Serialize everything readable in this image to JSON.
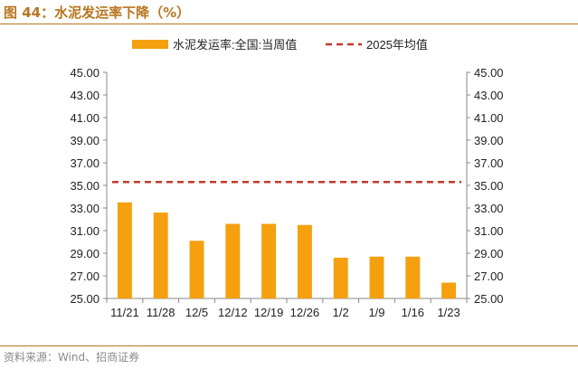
{
  "header": {
    "title": "图 44：水泥发运率下降（%）"
  },
  "footer": {
    "source": "资料来源：Wind、招商证券"
  },
  "colors": {
    "bar": "#F5A00F",
    "line": "#C0392B",
    "accent": "#B8761E",
    "axis": "#888888"
  },
  "chart_data": {
    "type": "bar",
    "categories": [
      "11/21",
      "11/28",
      "12/5",
      "12/12",
      "12/19",
      "12/26",
      "1/2",
      "1/9",
      "1/16",
      "1/23"
    ],
    "series": [
      {
        "name": "水泥发运率:全国:当周值",
        "type": "bar",
        "values": [
          33.5,
          32.6,
          30.1,
          31.6,
          31.6,
          31.5,
          28.6,
          28.7,
          28.7,
          26.4
        ]
      },
      {
        "name": "2025年均值",
        "type": "line",
        "style": "dashed",
        "values": [
          35.3,
          35.3,
          35.3,
          35.3,
          35.3,
          35.3,
          35.3,
          35.3,
          35.3,
          35.3
        ]
      }
    ],
    "ylim": [
      25,
      45
    ],
    "yticks": [
      "45.00",
      "43.00",
      "41.00",
      "39.00",
      "37.00",
      "35.00",
      "33.00",
      "31.00",
      "29.00",
      "27.00",
      "25.00"
    ],
    "y_ticks_right": true,
    "legend_position": "top",
    "grid": false
  }
}
